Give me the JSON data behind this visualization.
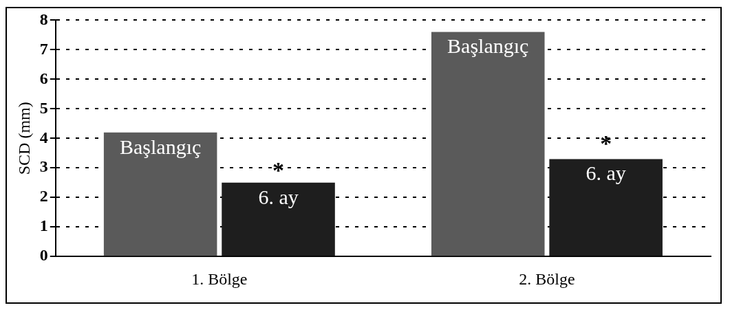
{
  "chart_data": {
    "type": "bar",
    "ylabel": "SCD (mm)",
    "categories": [
      "1. Bölge",
      "2. Bölge"
    ],
    "series": [
      {
        "name": "Başlangıç",
        "color": "#5a5a5a",
        "values": [
          4.2,
          7.6
        ]
      },
      {
        "name": "6. ay",
        "color": "#1e1e1e",
        "values": [
          2.5,
          3.3
        ]
      }
    ],
    "ylim": [
      0,
      8
    ],
    "yticks": [
      0,
      1,
      2,
      3,
      4,
      5,
      6,
      7,
      8
    ],
    "grid": "y",
    "legend": false,
    "annotations": [
      {
        "text": "*",
        "x": "1. Bölge",
        "y": 3
      },
      {
        "text": "*",
        "x": "2. Bölge",
        "y": 3.9
      }
    ]
  }
}
